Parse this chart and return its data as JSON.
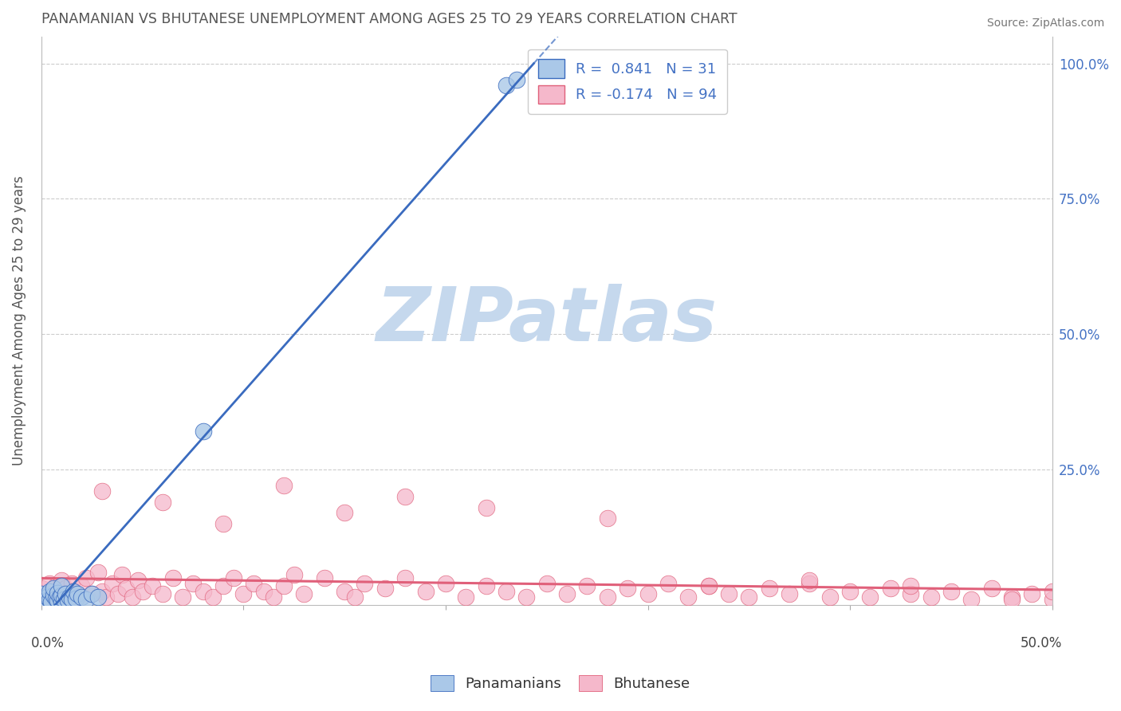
{
  "title": "PANAMANIAN VS BHUTANESE UNEMPLOYMENT AMONG AGES 25 TO 29 YEARS CORRELATION CHART",
  "source": "Source: ZipAtlas.com",
  "ylabel": "Unemployment Among Ages 25 to 29 years",
  "xlim": [
    0.0,
    0.5
  ],
  "ylim": [
    0.0,
    1.05
  ],
  "legend_blue_label": "Panamanians",
  "legend_pink_label": "Bhutanese",
  "R_blue": 0.841,
  "N_blue": 31,
  "R_pink": -0.174,
  "N_pink": 94,
  "blue_scatter_color": "#aac8e8",
  "blue_line_color": "#3a6bbf",
  "pink_scatter_color": "#f5b8cb",
  "pink_line_color": "#e0607a",
  "watermark": "ZIPatlas",
  "watermark_color": "#c5d8ed",
  "grid_color": "#cccccc",
  "title_color": "#666666",
  "pan_x": [
    0.0,
    0.0,
    0.002,
    0.003,
    0.004,
    0.004,
    0.005,
    0.006,
    0.006,
    0.007,
    0.008,
    0.008,
    0.009,
    0.01,
    0.01,
    0.01,
    0.011,
    0.012,
    0.013,
    0.014,
    0.015,
    0.016,
    0.017,
    0.018,
    0.02,
    0.022,
    0.025,
    0.028,
    0.08,
    0.23,
    0.235
  ],
  "pan_y": [
    0.005,
    0.02,
    0.008,
    0.015,
    0.01,
    0.025,
    0.005,
    0.018,
    0.03,
    0.012,
    0.008,
    0.022,
    0.015,
    0.005,
    0.018,
    0.035,
    0.01,
    0.02,
    0.008,
    0.015,
    0.01,
    0.025,
    0.012,
    0.02,
    0.015,
    0.01,
    0.02,
    0.015,
    0.32,
    0.96,
    0.97
  ],
  "bhu_x": [
    0.0,
    0.002,
    0.004,
    0.005,
    0.006,
    0.007,
    0.008,
    0.01,
    0.01,
    0.012,
    0.014,
    0.015,
    0.016,
    0.018,
    0.02,
    0.022,
    0.025,
    0.028,
    0.03,
    0.032,
    0.035,
    0.038,
    0.04,
    0.042,
    0.045,
    0.048,
    0.05,
    0.055,
    0.06,
    0.065,
    0.07,
    0.075,
    0.08,
    0.085,
    0.09,
    0.095,
    0.1,
    0.105,
    0.11,
    0.115,
    0.12,
    0.125,
    0.13,
    0.14,
    0.15,
    0.155,
    0.16,
    0.17,
    0.18,
    0.19,
    0.2,
    0.21,
    0.22,
    0.23,
    0.24,
    0.25,
    0.26,
    0.27,
    0.28,
    0.29,
    0.3,
    0.31,
    0.32,
    0.33,
    0.34,
    0.35,
    0.36,
    0.37,
    0.38,
    0.39,
    0.4,
    0.41,
    0.42,
    0.43,
    0.44,
    0.45,
    0.46,
    0.47,
    0.48,
    0.49,
    0.5,
    0.5,
    0.18,
    0.22,
    0.12,
    0.06,
    0.09,
    0.03,
    0.15,
    0.28,
    0.33,
    0.38,
    0.43,
    0.48
  ],
  "bhu_y": [
    0.03,
    0.015,
    0.04,
    0.025,
    0.01,
    0.035,
    0.02,
    0.045,
    0.008,
    0.03,
    0.015,
    0.04,
    0.025,
    0.015,
    0.035,
    0.05,
    0.02,
    0.06,
    0.025,
    0.015,
    0.04,
    0.02,
    0.055,
    0.03,
    0.015,
    0.045,
    0.025,
    0.035,
    0.02,
    0.05,
    0.015,
    0.04,
    0.025,
    0.015,
    0.035,
    0.05,
    0.02,
    0.04,
    0.025,
    0.015,
    0.035,
    0.055,
    0.02,
    0.05,
    0.025,
    0.015,
    0.04,
    0.03,
    0.05,
    0.025,
    0.04,
    0.015,
    0.035,
    0.025,
    0.015,
    0.04,
    0.02,
    0.035,
    0.015,
    0.03,
    0.02,
    0.04,
    0.015,
    0.035,
    0.02,
    0.015,
    0.03,
    0.02,
    0.04,
    0.015,
    0.025,
    0.015,
    0.03,
    0.02,
    0.015,
    0.025,
    0.01,
    0.03,
    0.015,
    0.02,
    0.01,
    0.025,
    0.2,
    0.18,
    0.22,
    0.19,
    0.15,
    0.21,
    0.17,
    0.16,
    0.035,
    0.045,
    0.035,
    0.01
  ]
}
